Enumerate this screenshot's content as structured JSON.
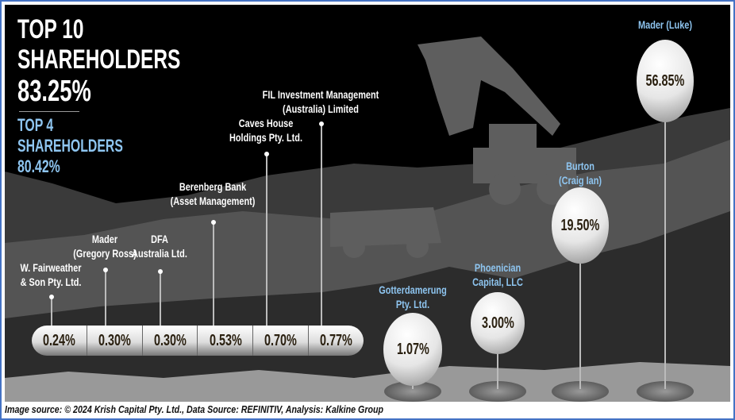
{
  "headline": {
    "line1": "TOP 10",
    "line2": "SHAREHOLDERS",
    "value": "83.25%"
  },
  "subhead": {
    "line1": "TOP 4",
    "line2": "SHAREHOLDERS",
    "value": "80.42%"
  },
  "colors": {
    "background": "#000000",
    "highlight": "#8ec5f0",
    "border": "#4472c4"
  },
  "chart_data": {
    "type": "bar",
    "categories": [
      "W. Fairweather & Son Pty. Ltd.",
      "Mader (Gregory Ross)",
      "DFA Australia Ltd.",
      "Berenberg Bank (Asset Management)",
      "Caves House Holdings Pty. Ltd.",
      "FIL Investment Management (Australia) Limited",
      "Gotterdamerung Pty. Ltd.",
      "Phoenician Capital, LLC",
      "Burton (Craig Ian)",
      "Mader (Luke)"
    ],
    "values": [
      0.24,
      0.3,
      0.3,
      0.53,
      0.7,
      0.77,
      1.07,
      3.0,
      19.5,
      56.85
    ],
    "unit": "%",
    "labels": [
      {
        "l1": "W. Fairweather",
        "l2": "& Son Pty. Ltd.",
        "v": "0.24%"
      },
      {
        "l1": "Mader",
        "l2": "(Gregory Ross)",
        "v": "0.30%"
      },
      {
        "l1": "DFA",
        "l2": "Australia Ltd.",
        "v": "0.30%"
      },
      {
        "l1": "Berenberg Bank",
        "l2": "(Asset Management)",
        "v": "0.53%"
      },
      {
        "l1": "Caves House",
        "l2": "Holdings Pty. Ltd.",
        "v": "0.70%"
      },
      {
        "l1": "FIL Investment Management",
        "l2": "(Australia) Limited",
        "v": "0.77%"
      },
      {
        "l1": "Gotterdamerung",
        "l2": "Pty. Ltd.",
        "v": "1.07%"
      },
      {
        "l1": "Phoenician",
        "l2": "Capital, LLC",
        "v": "3.00%"
      },
      {
        "l1": "Burton",
        "l2": "(Craig Ian)",
        "v": "19.50%"
      },
      {
        "l1": "Mader (Luke)",
        "l2": "",
        "v": "56.85%"
      }
    ],
    "top4_highlighted": true
  },
  "caption": "Image source: © 2024 Krish Capital Pty. Ltd., Data Source: REFINITIV, Analysis: Kalkine Group"
}
